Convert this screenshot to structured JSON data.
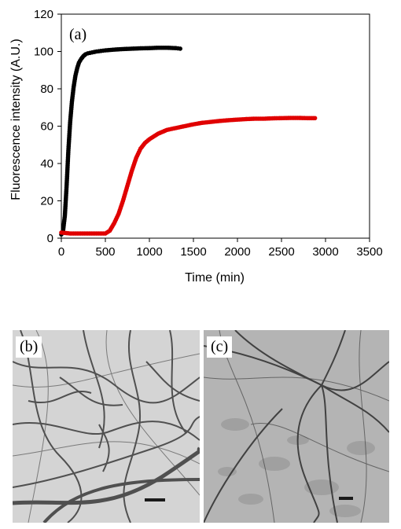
{
  "chart_data": {
    "type": "scatter",
    "title": "",
    "panel_label": "(a)",
    "xlabel": "Time (min)",
    "ylabel": "Fluorescence intensity (A.U.)",
    "xlim": [
      0,
      3500
    ],
    "ylim": [
      0,
      120
    ],
    "x_ticks": [
      "0",
      "500",
      "1000",
      "1500",
      "2000",
      "2500",
      "3000",
      "3500"
    ],
    "y_ticks": [
      "0",
      "20",
      "40",
      "60",
      "80",
      "100",
      "120"
    ],
    "grid": false,
    "legend": "none",
    "series": [
      {
        "color": "#000000",
        "x": [
          0,
          20,
          40,
          60,
          80,
          100,
          120,
          140,
          160,
          180,
          200,
          225,
          250,
          275,
          300,
          350,
          400,
          450,
          500,
          600,
          700,
          800,
          900,
          1000,
          1100,
          1200,
          1300,
          1350
        ],
        "y": [
          2,
          4,
          12,
          28,
          47,
          62,
          73,
          81,
          87,
          91,
          94,
          96,
          97.5,
          98.5,
          99,
          99.5,
          100,
          100.3,
          100.6,
          101,
          101.3,
          101.5,
          101.7,
          101.8,
          102,
          102,
          101.8,
          101.5
        ]
      },
      {
        "color": "#e00000",
        "x": [
          0,
          100,
          200,
          300,
          400,
          500,
          550,
          600,
          650,
          700,
          750,
          800,
          850,
          900,
          950,
          1000,
          1050,
          1100,
          1150,
          1200,
          1300,
          1400,
          1500,
          1600,
          1700,
          1800,
          1900,
          2000,
          2100,
          2200,
          2300,
          2400,
          2500,
          2600,
          2700,
          2800,
          2880
        ],
        "y": [
          3,
          2.5,
          2.5,
          2.5,
          2.5,
          2.5,
          4,
          8,
          13,
          20,
          28,
          36,
          43,
          48,
          51,
          53,
          54.5,
          56,
          57,
          58,
          59,
          60,
          61,
          61.8,
          62.3,
          62.8,
          63.2,
          63.5,
          63.8,
          64,
          64,
          64.2,
          64.3,
          64.4,
          64.4,
          64.3,
          64.3
        ]
      }
    ]
  },
  "micrographs": [
    {
      "label": "(b)"
    },
    {
      "label": "(c)"
    }
  ]
}
